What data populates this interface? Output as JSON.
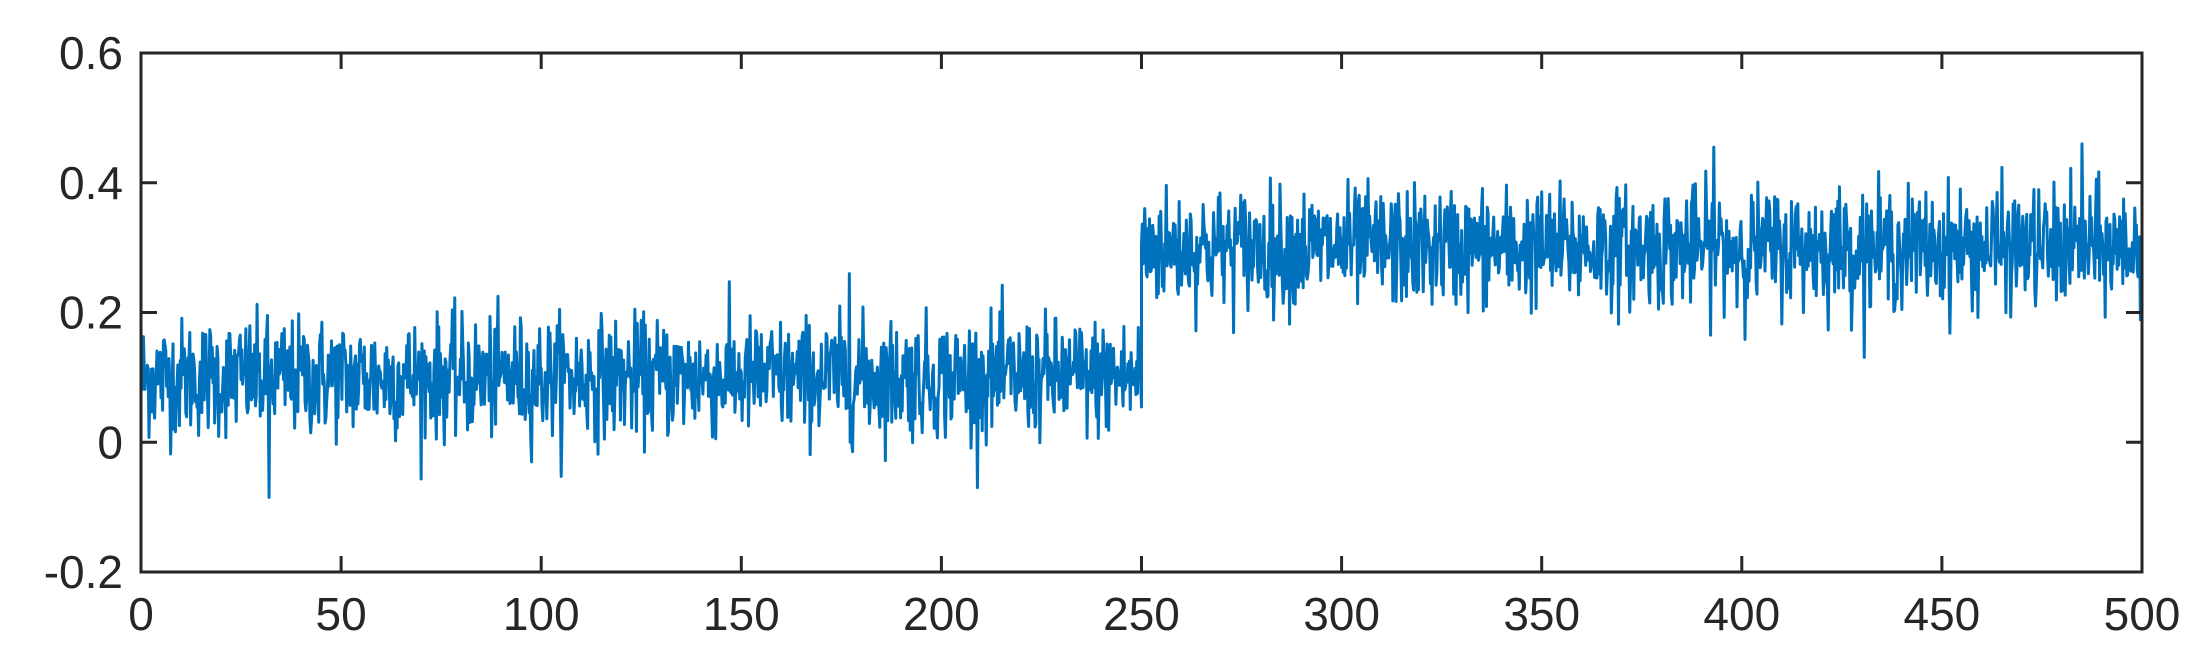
{
  "chart_data": {
    "type": "line",
    "title": "",
    "xlabel": "",
    "ylabel": "",
    "xlim": [
      0,
      500
    ],
    "ylim": [
      -0.2,
      0.6
    ],
    "x_ticks": [
      0,
      50,
      100,
      150,
      200,
      250,
      300,
      350,
      400,
      450,
      500
    ],
    "x_tick_labels": [
      "0",
      "50",
      "100",
      "150",
      "200",
      "250",
      "300",
      "350",
      "400",
      "450",
      "500"
    ],
    "y_ticks": [
      -0.2,
      0,
      0.2,
      0.4,
      0.6
    ],
    "y_tick_labels": [
      "-0.2",
      "0",
      "0.2",
      "0.4",
      "0.6"
    ],
    "grid": false,
    "legend": "none",
    "color": "#0072BD",
    "series": [
      {
        "segments": [
          {
            "x_start": 0,
            "x_end": 250,
            "mean": 0.1
          },
          {
            "x_start": 250,
            "x_end": 500,
            "mean": 0.3
          }
        ],
        "noise_std": 0.045,
        "sample_step": 0.2,
        "extremes": [
          {
            "x": 32,
            "y": -0.085
          },
          {
            "x": 177,
            "y": 0.26
          },
          {
            "x": 393,
            "y": 0.455
          },
          {
            "x": 485,
            "y": 0.46
          }
        ]
      }
    ]
  }
}
